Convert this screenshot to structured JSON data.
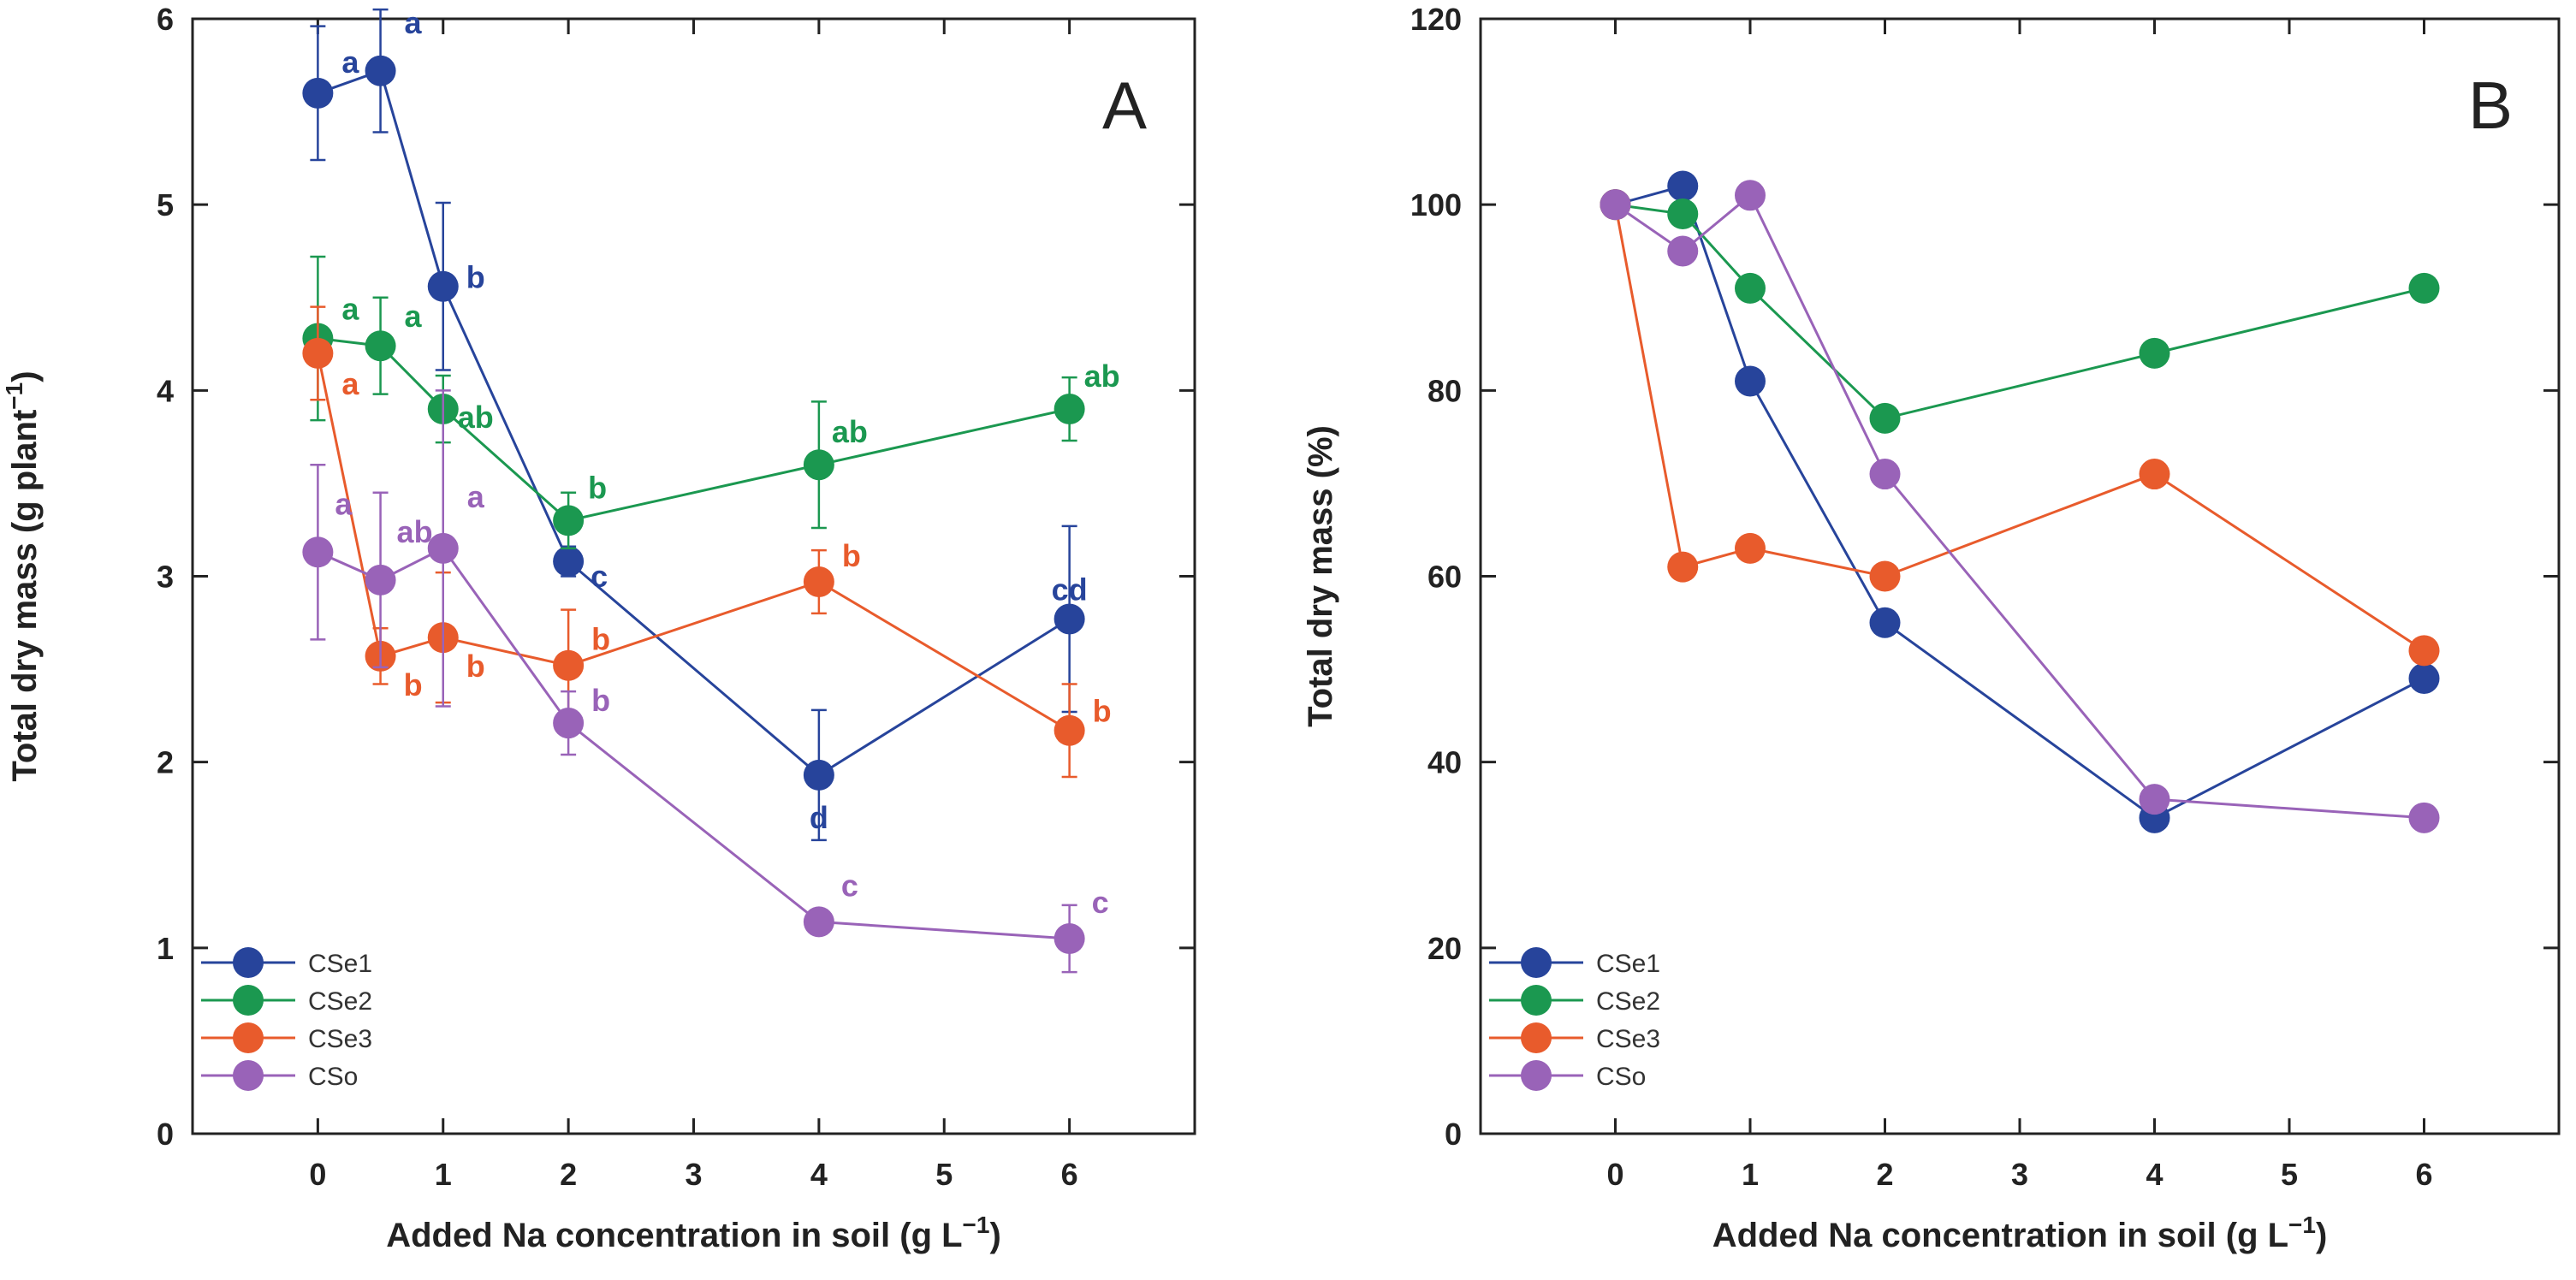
{
  "chart_data": [
    {
      "type": "line",
      "panel_label": "A",
      "xlabel": "Added Na concentration in soil (g L",
      "xlabel_sup": "−1",
      "xlabel_end": ")",
      "ylabel": "Total dry mass (g plant",
      "ylabel_sup": "−1",
      "ylabel_end": ")",
      "xlim": [
        -1,
        7
      ],
      "ylim": [
        0,
        6
      ],
      "xticks": [
        0,
        1,
        2,
        3,
        4,
        5,
        6
      ],
      "yticks": [
        0,
        1,
        2,
        3,
        4,
        5,
        6
      ],
      "grid": false,
      "legend_position": "bottom-left",
      "series": [
        {
          "name": "CSe1",
          "color": "#27449b",
          "x": [
            0,
            0.5,
            1,
            2,
            4,
            6
          ],
          "y": [
            5.6,
            5.72,
            4.56,
            3.08,
            1.93,
            2.77
          ],
          "err": [
            0.36,
            0.33,
            0.45,
            0.08,
            0.35,
            0.5
          ],
          "letters": [
            "a",
            "a",
            "b",
            "c",
            "d",
            "cd"
          ]
        },
        {
          "name": "CSe2",
          "color": "#1b9850",
          "x": [
            0,
            0.5,
            1,
            2,
            4,
            6
          ],
          "y": [
            4.28,
            4.24,
            3.9,
            3.3,
            3.6,
            3.9
          ],
          "err": [
            0.44,
            0.26,
            0.18,
            0.15,
            0.34,
            0.17
          ],
          "letters": [
            "a",
            "a",
            "ab",
            "b",
            "ab",
            "ab"
          ]
        },
        {
          "name": "CSe3",
          "color": "#e85b2c",
          "x": [
            0,
            0.5,
            1,
            2,
            4,
            6
          ],
          "y": [
            4.2,
            2.57,
            2.67,
            2.52,
            2.97,
            2.17
          ],
          "err": [
            0.25,
            0.15,
            0.35,
            0.3,
            0.17,
            0.25
          ],
          "letters": [
            "a",
            "b",
            "b",
            "b",
            "b",
            "b"
          ]
        },
        {
          "name": "CSo",
          "color": "#9963b8",
          "x": [
            0,
            0.5,
            1,
            2,
            4,
            6
          ],
          "y": [
            3.13,
            2.98,
            3.15,
            2.21,
            1.14,
            1.05
          ],
          "err": [
            0.47,
            0.47,
            0.85,
            0.17,
            0.05,
            0.18
          ],
          "letters": [
            "a",
            "ab",
            "a",
            "b",
            "c",
            "c"
          ]
        }
      ]
    },
    {
      "type": "line",
      "panel_label": "B",
      "xlabel": "Added Na concentration in soil (g L",
      "xlabel_sup": "−1",
      "xlabel_end": ")",
      "ylabel": "Total dry mass (%)",
      "ylabel_sup": "",
      "ylabel_end": "",
      "xlim": [
        -1,
        7
      ],
      "ylim": [
        0,
        120
      ],
      "xticks": [
        0,
        1,
        2,
        3,
        4,
        5,
        6
      ],
      "yticks": [
        0,
        20,
        40,
        60,
        80,
        100,
        120
      ],
      "grid": false,
      "legend_position": "bottom-left",
      "series": [
        {
          "name": "CSe1",
          "color": "#27449b",
          "x": [
            0,
            0.5,
            1,
            2,
            4,
            6
          ],
          "y": [
            100,
            102,
            81,
            55,
            34,
            49
          ]
        },
        {
          "name": "CSe2",
          "color": "#1b9850",
          "x": [
            0,
            0.5,
            1,
            2,
            4,
            6
          ],
          "y": [
            100,
            99,
            91,
            77,
            84,
            91
          ]
        },
        {
          "name": "CSe3",
          "color": "#e85b2c",
          "x": [
            0,
            0.5,
            1,
            2,
            4,
            6
          ],
          "y": [
            100,
            61,
            63,
            60,
            71,
            52
          ]
        },
        {
          "name": "CSo",
          "color": "#9963b8",
          "x": [
            0,
            0.5,
            1,
            2,
            4,
            6
          ],
          "y": [
            100,
            95,
            101,
            71,
            36,
            34
          ]
        }
      ]
    }
  ]
}
